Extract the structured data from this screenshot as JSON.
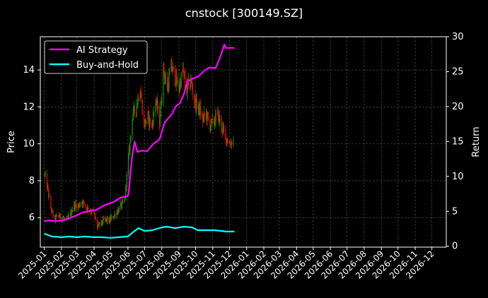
{
  "chart_data": {
    "type": "line",
    "title": "cnstock [300149.SZ]",
    "ylabel_left": "Price",
    "ylabel_right": "Return",
    "ylim_left": [
      4.4,
      15.8
    ],
    "ylim_right": [
      -0.13,
      30.0
    ],
    "xlim": [
      "2024-12-25",
      "2026-12-27"
    ],
    "x_ticks": [
      "2025-01",
      "2025-02",
      "2025-03",
      "2025-04",
      "2025-05",
      "2025-06",
      "2025-07",
      "2025-08",
      "2025-09",
      "2025-10",
      "2025-11",
      "2025-12",
      "2026-01",
      "2026-02",
      "2026-03",
      "2026-04",
      "2026-05",
      "2026-06",
      "2026-07",
      "2026-08",
      "2026-09",
      "2026-10",
      "2026-11",
      "2026-12"
    ],
    "y_ticks_left": [
      6,
      8,
      10,
      12,
      14
    ],
    "y_ticks_right": [
      0,
      5,
      10,
      15,
      20,
      25,
      30
    ],
    "grid": true,
    "legend_position": "top-left",
    "colors": {
      "background": "#000000",
      "ai_strategy": "#ff00ff",
      "buy_and_hold": "#00ffff",
      "candle_up": "#00a000",
      "candle_down": "#ff0000",
      "grid": "#555555"
    },
    "candles": {
      "close": [
        [
          "2025-01-02",
          8.3
        ],
        [
          "2025-01-07",
          7.6
        ],
        [
          "2025-01-10",
          7.0
        ],
        [
          "2025-01-14",
          6.4
        ],
        [
          "2025-01-17",
          6.1
        ],
        [
          "2025-01-21",
          5.9
        ],
        [
          "2025-01-24",
          6.1
        ],
        [
          "2025-02-04",
          6.0
        ],
        [
          "2025-02-10",
          5.8
        ],
        [
          "2025-02-17",
          6.2
        ],
        [
          "2025-02-24",
          6.7
        ],
        [
          "2025-03-03",
          6.6
        ],
        [
          "2025-03-10",
          6.9
        ],
        [
          "2025-03-17",
          6.6
        ],
        [
          "2025-03-24",
          6.4
        ],
        [
          "2025-03-31",
          6.3
        ],
        [
          "2025-04-07",
          5.5
        ],
        [
          "2025-04-14",
          5.7
        ],
        [
          "2025-04-21",
          5.9
        ],
        [
          "2025-04-28",
          5.8
        ],
        [
          "2025-05-06",
          6.1
        ],
        [
          "2025-05-12",
          6.3
        ],
        [
          "2025-05-19",
          6.6
        ],
        [
          "2025-05-26",
          6.9
        ],
        [
          "2025-06-03",
          9.5
        ],
        [
          "2025-06-09",
          11.5
        ],
        [
          "2025-06-16",
          12.0
        ],
        [
          "2025-06-23",
          13.1
        ],
        [
          "2025-06-30",
          11.0
        ],
        [
          "2025-07-07",
          11.5
        ],
        [
          "2025-07-14",
          10.9
        ],
        [
          "2025-07-21",
          12.4
        ],
        [
          "2025-07-28",
          11.2
        ],
        [
          "2025-08-04",
          14.0
        ],
        [
          "2025-08-11",
          13.0
        ],
        [
          "2025-08-18",
          14.2
        ],
        [
          "2025-08-25",
          13.6
        ],
        [
          "2025-09-01",
          13.0
        ],
        [
          "2025-09-08",
          14.0
        ],
        [
          "2025-09-15",
          12.9
        ],
        [
          "2025-09-22",
          13.5
        ],
        [
          "2025-09-29",
          12.3
        ],
        [
          "2025-10-09",
          11.8
        ],
        [
          "2025-10-13",
          11.3
        ],
        [
          "2025-10-20",
          11.6
        ],
        [
          "2025-10-27",
          11.0
        ],
        [
          "2025-11-03",
          11.2
        ],
        [
          "2025-11-10",
          11.6
        ],
        [
          "2025-11-17",
          10.9
        ],
        [
          "2025-11-24",
          10.4
        ],
        [
          "2025-12-01",
          10.0
        ],
        [
          "2025-12-08",
          10.2
        ]
      ]
    },
    "series": [
      {
        "name": "AI Strategy",
        "values": [
          [
            "2025-01-01",
            3.6
          ],
          [
            "2025-01-10",
            3.7
          ],
          [
            "2025-01-20",
            3.6
          ],
          [
            "2025-02-05",
            3.7
          ],
          [
            "2025-02-15",
            4.0
          ],
          [
            "2025-02-25",
            4.3
          ],
          [
            "2025-03-10",
            4.8
          ],
          [
            "2025-03-25",
            5.1
          ],
          [
            "2025-04-05",
            5.2
          ],
          [
            "2025-04-20",
            5.9
          ],
          [
            "2025-05-05",
            6.3
          ],
          [
            "2025-05-20",
            7.0
          ],
          [
            "2025-06-01",
            7.2
          ],
          [
            "2025-06-03",
            8.1
          ],
          [
            "2025-06-06",
            11.0
          ],
          [
            "2025-06-09",
            13.1
          ],
          [
            "2025-06-13",
            15.0
          ],
          [
            "2025-06-18",
            13.5
          ],
          [
            "2025-06-26",
            13.7
          ],
          [
            "2025-07-06",
            13.6
          ],
          [
            "2025-07-16",
            14.6
          ],
          [
            "2025-07-28",
            15.3
          ],
          [
            "2025-08-06",
            17.7
          ],
          [
            "2025-08-20",
            19.0
          ],
          [
            "2025-08-26",
            20.0
          ],
          [
            "2025-09-03",
            20.5
          ],
          [
            "2025-09-10",
            21.8
          ],
          [
            "2025-09-16",
            23.6
          ],
          [
            "2025-09-26",
            24.0
          ],
          [
            "2025-10-06",
            24.3
          ],
          [
            "2025-10-16",
            25.1
          ],
          [
            "2025-10-26",
            25.6
          ],
          [
            "2025-11-06",
            25.5
          ],
          [
            "2025-11-14",
            27.0
          ],
          [
            "2025-11-22",
            28.9
          ],
          [
            "2025-11-24",
            28.4
          ],
          [
            "2025-12-10",
            28.4
          ]
        ]
      },
      {
        "name": "Buy-and-Hold",
        "values": [
          [
            "2025-01-01",
            1.8
          ],
          [
            "2025-01-15",
            1.4
          ],
          [
            "2025-02-01",
            1.3
          ],
          [
            "2025-02-15",
            1.4
          ],
          [
            "2025-03-01",
            1.3
          ],
          [
            "2025-03-15",
            1.4
          ],
          [
            "2025-04-01",
            1.3
          ],
          [
            "2025-04-15",
            1.3
          ],
          [
            "2025-05-01",
            1.2
          ],
          [
            "2025-05-15",
            1.3
          ],
          [
            "2025-06-01",
            1.4
          ],
          [
            "2025-06-10",
            2.0
          ],
          [
            "2025-06-20",
            2.6
          ],
          [
            "2025-07-01",
            2.2
          ],
          [
            "2025-07-15",
            2.3
          ],
          [
            "2025-08-01",
            2.7
          ],
          [
            "2025-08-10",
            2.8
          ],
          [
            "2025-08-25",
            2.6
          ],
          [
            "2025-09-10",
            2.8
          ],
          [
            "2025-09-25",
            2.7
          ],
          [
            "2025-10-05",
            2.3
          ],
          [
            "2025-10-20",
            2.3
          ],
          [
            "2025-11-05",
            2.3
          ],
          [
            "2025-11-25",
            2.1
          ],
          [
            "2025-12-10",
            2.1
          ]
        ]
      }
    ]
  }
}
